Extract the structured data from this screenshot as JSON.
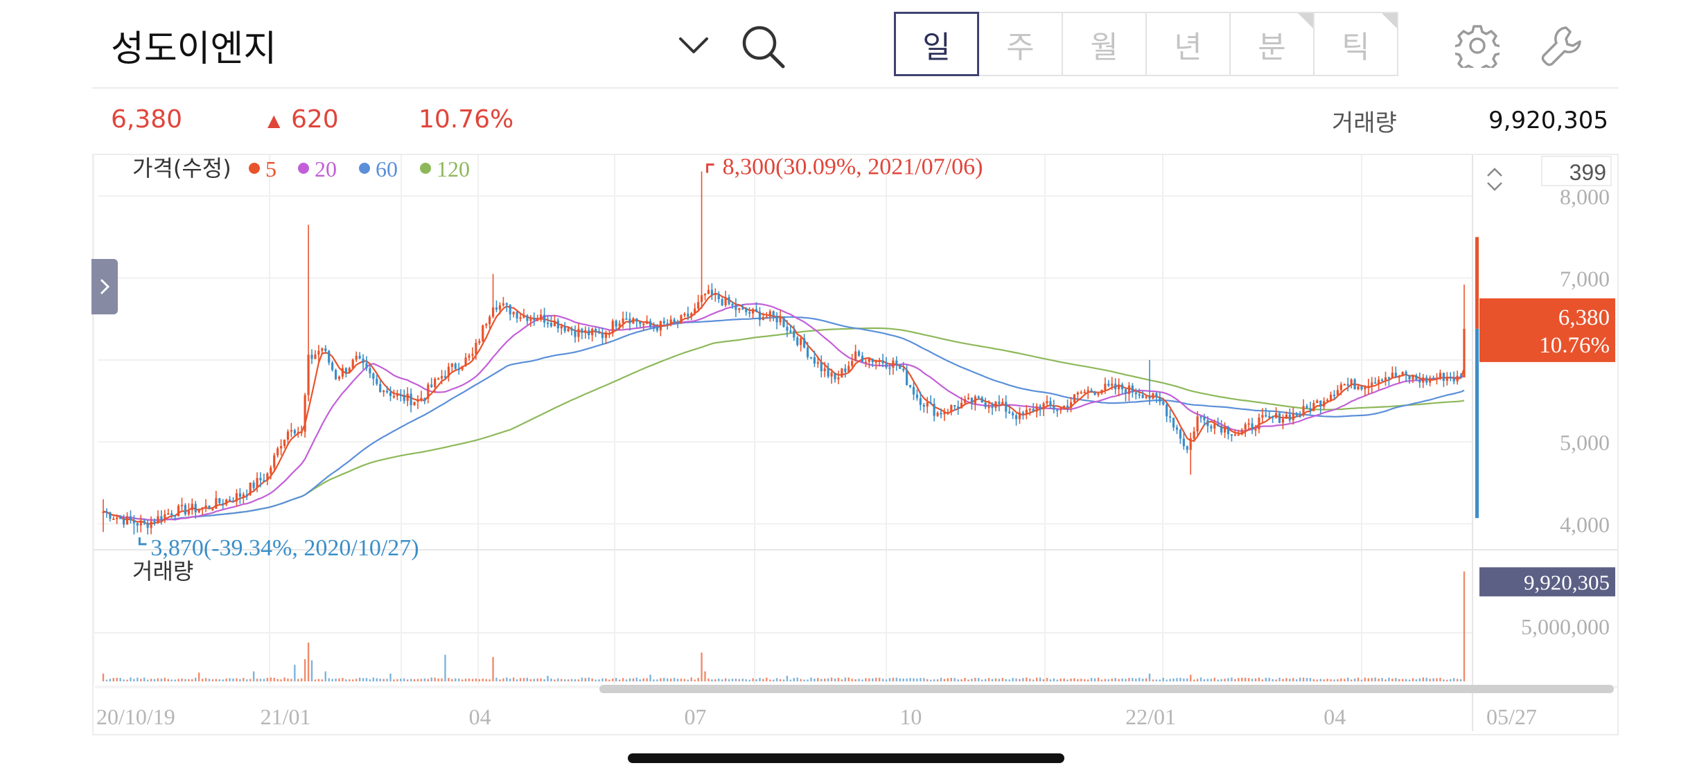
{
  "header": {
    "stock_name": "성도이엔지",
    "period_tabs": [
      {
        "label": "일",
        "active": true,
        "flagged": false
      },
      {
        "label": "주",
        "active": false,
        "flagged": false
      },
      {
        "label": "월",
        "active": false,
        "flagged": false
      },
      {
        "label": "년",
        "active": false,
        "flagged": false
      },
      {
        "label": "분",
        "active": false,
        "flagged": true
      },
      {
        "label": "틱",
        "active": false,
        "flagged": true
      }
    ],
    "icons": [
      "chevron-down-icon",
      "search-icon",
      "gear-icon",
      "wrench-icon"
    ]
  },
  "quote": {
    "price": "6,380",
    "change_arrow": "▲",
    "change": "620",
    "change_pct": "10.76%",
    "volume_label": "거래량",
    "volume": "9,920,305",
    "up_color": "#e0453a"
  },
  "chart_data": {
    "type": "candlestick",
    "title": "",
    "legend": {
      "label": "가격(수정)",
      "ma": [
        {
          "period": "5",
          "color": "#e8532c"
        },
        {
          "period": "20",
          "color": "#c25fd8"
        },
        {
          "period": "60",
          "color": "#5b8fd8"
        },
        {
          "period": "120",
          "color": "#8db85a"
        }
      ]
    },
    "scroll_count": "399",
    "ylim": [
      3700,
      8500
    ],
    "y_ticks": [
      {
        "value": 8000,
        "label": "8,000"
      },
      {
        "value": 7000,
        "label": "7,000"
      },
      {
        "value": 5000,
        "label": "5,000"
      },
      {
        "value": 4000,
        "label": "4,000"
      }
    ],
    "x_tick_labels": [
      {
        "label": "20/10/19",
        "idx": 0
      },
      {
        "label": "21/01",
        "idx": 52
      },
      {
        "label": "04",
        "idx": 113
      },
      {
        "label": "07",
        "idx": 176
      },
      {
        "label": "10",
        "idx": 239
      },
      {
        "label": "22/01",
        "idx": 305
      },
      {
        "label": "04",
        "idx": 363
      },
      {
        "label": "05/27",
        "idx": 398
      }
    ],
    "n_points": 399,
    "price_anchors": [
      [
        0,
        4150
      ],
      [
        6,
        4050
      ],
      [
        12,
        3990
      ],
      [
        20,
        4150
      ],
      [
        30,
        4200
      ],
      [
        40,
        4350
      ],
      [
        48,
        4600
      ],
      [
        52,
        5000
      ],
      [
        55,
        5200
      ],
      [
        58,
        5100
      ],
      [
        60,
        6000
      ],
      [
        64,
        6150
      ],
      [
        68,
        5800
      ],
      [
        74,
        6000
      ],
      [
        80,
        5700
      ],
      [
        86,
        5550
      ],
      [
        92,
        5500
      ],
      [
        100,
        5850
      ],
      [
        108,
        6050
      ],
      [
        114,
        6700
      ],
      [
        122,
        6550
      ],
      [
        130,
        6500
      ],
      [
        138,
        6350
      ],
      [
        146,
        6300
      ],
      [
        152,
        6550
      ],
      [
        160,
        6400
      ],
      [
        168,
        6450
      ],
      [
        173,
        6600
      ],
      [
        176,
        6800
      ],
      [
        180,
        6750
      ],
      [
        186,
        6600
      ],
      [
        192,
        6550
      ],
      [
        198,
        6500
      ],
      [
        204,
        6200
      ],
      [
        210,
        5900
      ],
      [
        214,
        5750
      ],
      [
        220,
        6050
      ],
      [
        226,
        6000
      ],
      [
        232,
        5950
      ],
      [
        238,
        5550
      ],
      [
        244,
        5350
      ],
      [
        250,
        5450
      ],
      [
        256,
        5500
      ],
      [
        262,
        5450
      ],
      [
        268,
        5300
      ],
      [
        274,
        5450
      ],
      [
        280,
        5400
      ],
      [
        286,
        5600
      ],
      [
        292,
        5650
      ],
      [
        298,
        5650
      ],
      [
        304,
        5600
      ],
      [
        310,
        5450
      ],
      [
        314,
        5150
      ],
      [
        317,
        4900
      ],
      [
        320,
        5300
      ],
      [
        326,
        5200
      ],
      [
        332,
        5100
      ],
      [
        338,
        5250
      ],
      [
        344,
        5300
      ],
      [
        350,
        5350
      ],
      [
        356,
        5500
      ],
      [
        362,
        5700
      ],
      [
        368,
        5700
      ],
      [
        374,
        5800
      ],
      [
        380,
        5800
      ],
      [
        386,
        5750
      ],
      [
        392,
        5800
      ],
      [
        397,
        5760
      ],
      [
        398,
        6380
      ]
    ],
    "spikes": [
      {
        "idx": 0,
        "high": 4300,
        "low": 3900
      },
      {
        "idx": 9,
        "low": 3870
      },
      {
        "idx": 60,
        "high": 7650
      },
      {
        "idx": 114,
        "high": 7050
      },
      {
        "idx": 175,
        "high": 8300
      },
      {
        "idx": 306,
        "high": 6000
      },
      {
        "idx": 318,
        "low": 4600
      },
      {
        "idx": 398,
        "high": 6920
      }
    ],
    "max_annotation": {
      "text": "8,300(30.09%, 2021/07/06)",
      "value": 8300,
      "idx": 175
    },
    "min_annotation": {
      "text": "3,870(-39.34%, 2020/10/27)",
      "value": 3870,
      "idx": 9
    },
    "current_tag": {
      "price": "6,380",
      "pct": "10.76%",
      "value": 6380,
      "range_high": 7500,
      "range_low": 4070
    },
    "volume_panel": {
      "label": "거래량",
      "ylim": [
        0,
        10500000
      ],
      "y_ticks": [
        {
          "value": 5000000,
          "label": "5,000,000"
        }
      ],
      "current_label": "9,920,305",
      "current_value": 9920305,
      "baseline": 250000,
      "spikes": [
        {
          "idx": 0,
          "value": 700000
        },
        {
          "idx": 28,
          "value": 800000
        },
        {
          "idx": 44,
          "value": 900000
        },
        {
          "idx": 56,
          "value": 1500000
        },
        {
          "idx": 59,
          "value": 2000000
        },
        {
          "idx": 60,
          "value": 3500000
        },
        {
          "idx": 61,
          "value": 1900000
        },
        {
          "idx": 65,
          "value": 900000
        },
        {
          "idx": 84,
          "value": 700000
        },
        {
          "idx": 100,
          "value": 2400000
        },
        {
          "idx": 114,
          "value": 2200000
        },
        {
          "idx": 130,
          "value": 500000
        },
        {
          "idx": 160,
          "value": 600000
        },
        {
          "idx": 175,
          "value": 2600000
        },
        {
          "idx": 176,
          "value": 900000
        },
        {
          "idx": 200,
          "value": 500000
        },
        {
          "idx": 306,
          "value": 700000
        },
        {
          "idx": 318,
          "value": 600000
        },
        {
          "idx": 398,
          "value": 9920305
        }
      ]
    }
  }
}
